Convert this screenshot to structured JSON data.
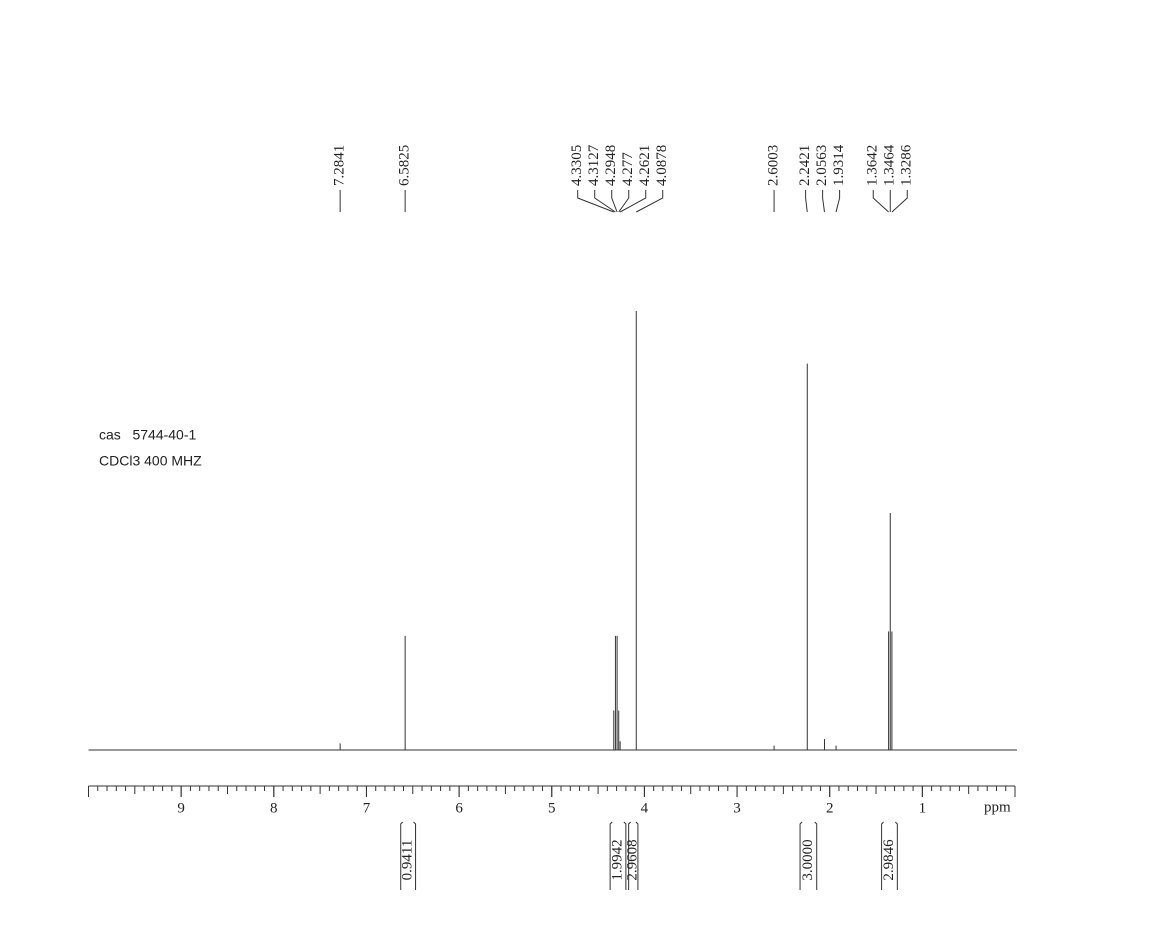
{
  "chart_data": {
    "type": "nmr",
    "annotations": [
      "cas   5744-40-1",
      "CDCl3 400 MHZ"
    ],
    "x": [
      7.2841,
      6.5825,
      4.3305,
      4.3127,
      4.2948,
      4.277,
      4.2621,
      4.0878,
      2.6003,
      2.2421,
      2.0563,
      1.9314,
      1.3642,
      1.3464,
      1.3286
    ],
    "values": [
      1.5,
      26,
      9,
      26,
      26,
      9,
      2,
      100,
      1,
      88,
      2.5,
      1,
      27,
      54,
      27
    ],
    "color": "#222222",
    "xlim": [
      10,
      0
    ],
    "ylim": [
      0,
      100
    ],
    "xticks": [
      9,
      8,
      7,
      6,
      5,
      4,
      3,
      2,
      1
    ],
    "xlabel": "ppm",
    "integrals": {
      "values": [
        0.9411,
        1.9942,
        2.9608,
        3,
        2.9846
      ],
      "value_labels": [
        "0.9411",
        "1.9942",
        "2.9608",
        "3.0000",
        "2.9846"
      ],
      "from": [
        6.63,
        4.37,
        4.17,
        2.32,
        1.44
      ],
      "to": [
        6.47,
        4.2,
        4.07,
        2.14,
        1.27
      ]
    }
  }
}
